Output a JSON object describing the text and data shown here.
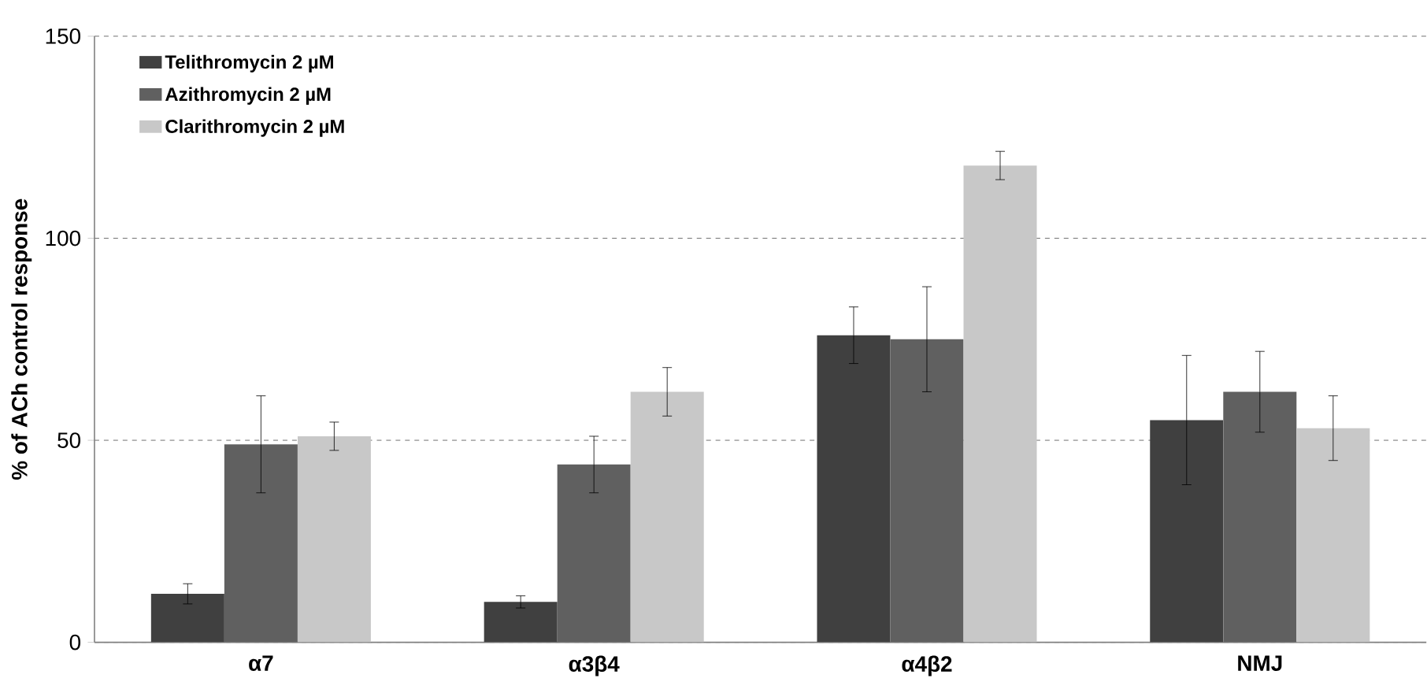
{
  "chart_data": {
    "type": "bar",
    "ylabel": "% of ACh control response",
    "categories": [
      "α7",
      "α3β4",
      "α4β2",
      "NMJ"
    ],
    "series": [
      {
        "name": "Telithromycin 2 µM",
        "color": "#404040",
        "values": [
          12,
          10,
          76,
          55
        ],
        "errors": [
          2.5,
          1.5,
          7,
          16
        ]
      },
      {
        "name": "Azithromycin 2 µM",
        "color": "#606060",
        "values": [
          49,
          44,
          75,
          62
        ],
        "errors": [
          12,
          7,
          13,
          10
        ]
      },
      {
        "name": "Clarithromycin 2 µM",
        "color": "#c8c8c8",
        "values": [
          51,
          62,
          118,
          53
        ],
        "errors": [
          3.5,
          6,
          3.5,
          8
        ]
      }
    ],
    "ylim": [
      0,
      150
    ],
    "yticks": [
      0,
      50,
      100,
      150
    ],
    "grid": "y",
    "legend": "top left"
  }
}
